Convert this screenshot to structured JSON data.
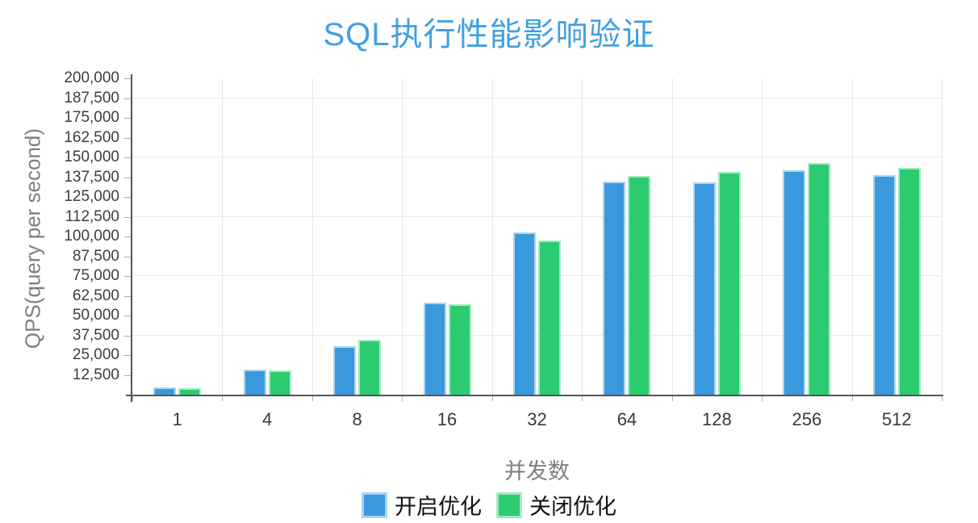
{
  "title": {
    "text": "SQL执行性能影响验证",
    "color": "#41a0e0"
  },
  "chart_data": {
    "type": "bar",
    "title": "SQL执行性能影响验证",
    "xlabel": "并发数",
    "ylabel": "QPS(query per second)",
    "categories": [
      "1",
      "4",
      "8",
      "16",
      "32",
      "64",
      "128",
      "256",
      "512"
    ],
    "series": [
      {
        "name": "开启优化",
        "color": "#3a99dc",
        "border_color": "#a9d4f1",
        "values": [
          4700,
          15600,
          30400,
          58400,
          102500,
          134800,
          134300,
          141600,
          138700
        ]
      },
      {
        "name": "关闭优化",
        "color": "#2dcb70",
        "border_color": "#a4e9c2",
        "values": [
          4300,
          15300,
          34600,
          57200,
          97400,
          138200,
          140800,
          146400,
          143600
        ]
      }
    ],
    "ylim": [
      0,
      200000
    ],
    "y_tick_step": 12500,
    "y_tick_labels": [
      "12,500",
      "25,000",
      "37,500",
      "50,000",
      "62,500",
      "75,000",
      "87,500",
      "100,000",
      "112,500",
      "125,000",
      "137,500",
      "150,000",
      "162,500",
      "175,000",
      "187,500",
      "200,000"
    ],
    "gridline_values": [
      37500,
      75000,
      112500,
      150000,
      187500
    ],
    "grid": true,
    "legend_position": "bottom"
  },
  "colors": {
    "axis": "#55555a",
    "hgrid": "#e9e9e9",
    "vgrid": "#e7e7e7",
    "tick": "#aaaaaa",
    "tick_label": "#3a3a3a",
    "axis_title": "#7f7f7f",
    "background": "#ffffff"
  }
}
